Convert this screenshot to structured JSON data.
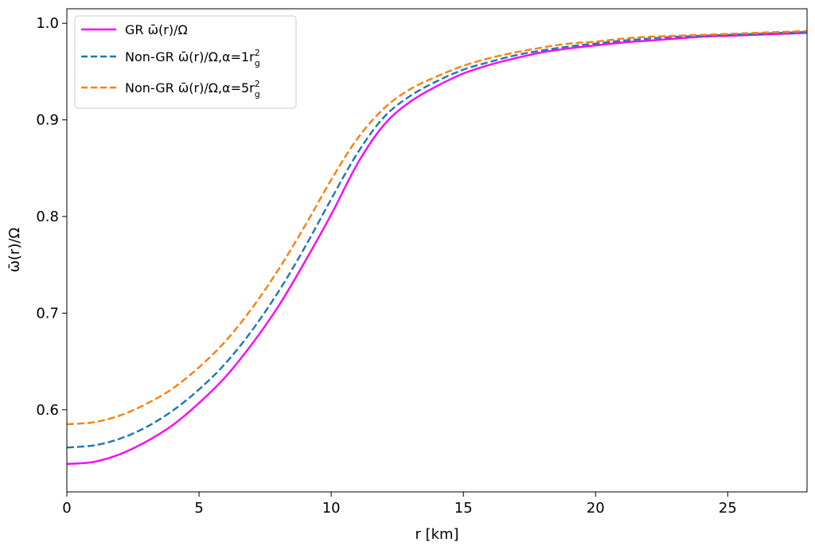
{
  "chart_data": {
    "type": "line",
    "title": "",
    "xlabel": "r [km]",
    "ylabel": "ω̄(r)/Ω",
    "xlim": [
      0,
      28
    ],
    "ylim": [
      0.515,
      1.015
    ],
    "x_ticks": [
      0,
      5,
      10,
      15,
      20,
      25
    ],
    "y_ticks": [
      0.6,
      0.7,
      0.8,
      0.9,
      1.0
    ],
    "x_tick_labels": [
      "0",
      "5",
      "10",
      "15",
      "20",
      "25"
    ],
    "y_tick_labels": [
      "0.6",
      "0.7",
      "0.8",
      "0.9",
      "1.0"
    ],
    "grid": false,
    "legend_position": "top-left",
    "series": [
      {
        "name": "GR ω̄(r)/Ω",
        "name_base": "GR ω̄(r)/Ω",
        "alpha_value": "",
        "color": "#ff00ff",
        "dash": "solid",
        "x": [
          0,
          1,
          2,
          3,
          4,
          5,
          6,
          7,
          8,
          9,
          10,
          11,
          12,
          13,
          14,
          15,
          16,
          17,
          18,
          19,
          20,
          21,
          22,
          23,
          24,
          25,
          26,
          27,
          28
        ],
        "y": [
          0.544,
          0.546,
          0.554,
          0.567,
          0.584,
          0.607,
          0.634,
          0.668,
          0.707,
          0.753,
          0.802,
          0.855,
          0.895,
          0.919,
          0.935,
          0.948,
          0.957,
          0.964,
          0.97,
          0.974,
          0.977,
          0.98,
          0.982,
          0.984,
          0.986,
          0.987,
          0.988,
          0.989,
          0.99
        ]
      },
      {
        "name": "Non-GR ω̄(r)/Ω,α=1r_g^2",
        "name_base": "Non-GR ω̄(r)/Ω,α=1r",
        "alpha_value": "1",
        "color": "#1f77b4",
        "dash": "dashed",
        "x": [
          0,
          1,
          2,
          3,
          4,
          5,
          6,
          7,
          8,
          9,
          10,
          11,
          12,
          13,
          14,
          15,
          16,
          17,
          18,
          19,
          20,
          21,
          22,
          23,
          24,
          25,
          26,
          27,
          28
        ],
        "y": [
          0.561,
          0.563,
          0.57,
          0.582,
          0.599,
          0.621,
          0.648,
          0.682,
          0.722,
          0.768,
          0.818,
          0.866,
          0.903,
          0.925,
          0.94,
          0.952,
          0.96,
          0.967,
          0.972,
          0.976,
          0.979,
          0.982,
          0.984,
          0.986,
          0.987,
          0.988,
          0.989,
          0.99,
          0.991
        ]
      },
      {
        "name": "Non-GR ω̄(r)/Ω,α=5r_g^2",
        "name_base": "Non-GR ω̄(r)/Ω,α=5r",
        "alpha_value": "5",
        "color": "#ff7f0e",
        "dash": "dashed",
        "x": [
          0,
          1,
          2,
          3,
          4,
          5,
          6,
          7,
          8,
          9,
          10,
          11,
          12,
          13,
          14,
          15,
          16,
          17,
          18,
          19,
          20,
          21,
          22,
          23,
          24,
          25,
          26,
          27,
          28
        ],
        "y": [
          0.585,
          0.587,
          0.594,
          0.606,
          0.622,
          0.644,
          0.671,
          0.705,
          0.745,
          0.79,
          0.838,
          0.881,
          0.912,
          0.932,
          0.945,
          0.956,
          0.964,
          0.97,
          0.975,
          0.979,
          0.981,
          0.984,
          0.986,
          0.987,
          0.988,
          0.989,
          0.99,
          0.991,
          0.992
        ]
      }
    ]
  }
}
